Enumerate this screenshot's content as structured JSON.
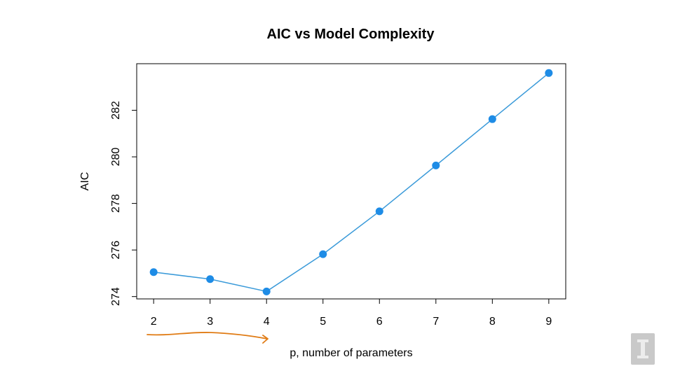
{
  "chart_data": {
    "type": "line",
    "title": "AIC vs Model Complexity",
    "xlabel": "p, number of parameters",
    "ylabel": "AIC",
    "x": [
      2,
      3,
      4,
      5,
      6,
      7,
      8,
      9
    ],
    "series": [
      {
        "values": [
          275.05,
          274.75,
          274.22,
          275.82,
          277.66,
          279.63,
          281.62,
          283.6
        ]
      }
    ],
    "xticks": [
      2,
      3,
      4,
      5,
      6,
      7,
      8,
      9
    ],
    "yticks": [
      274,
      276,
      278,
      280,
      282
    ],
    "xlim": [
      1.7,
      9.3
    ],
    "ylim": [
      273.9,
      284.0
    ],
    "grid": false,
    "colors": {
      "line": "#3a9ad9",
      "marker": "#1e8ce6",
      "annotation": "#e07b14"
    }
  }
}
